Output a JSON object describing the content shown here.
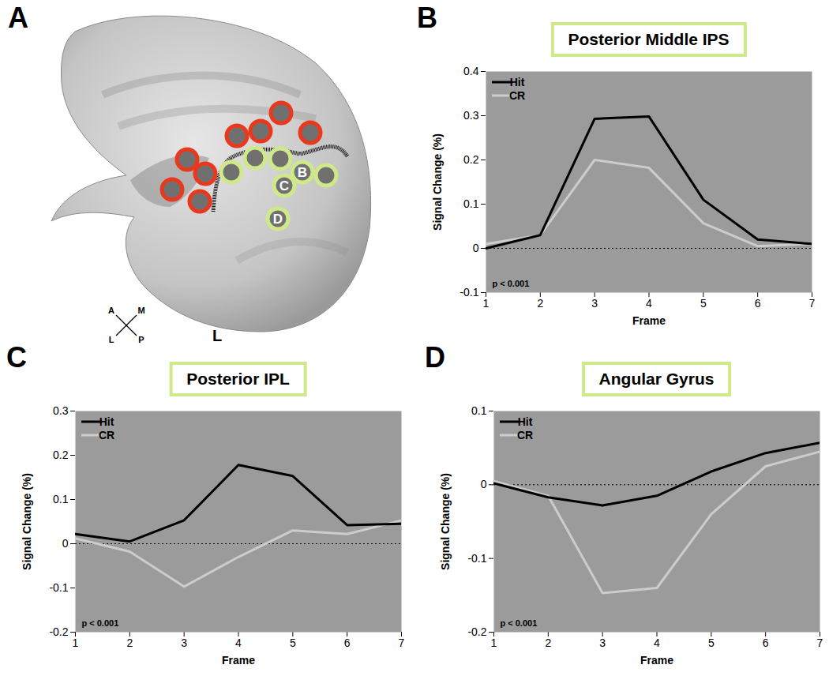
{
  "chart_data": [
    {
      "type": "line",
      "panel_label": "B",
      "title": "Posterior Middle IPS",
      "x_label": "Frame",
      "y_label": "Signal Change (%)",
      "x": [
        1,
        2,
        3,
        4,
        5,
        6,
        7
      ],
      "series": [
        {
          "name": "Hit",
          "color": "#000000",
          "values": [
            0.0,
            0.03,
            0.293,
            0.298,
            0.11,
            0.02,
            0.01
          ]
        },
        {
          "name": "CR",
          "color": "#cccccc",
          "values": [
            0.01,
            0.03,
            0.2,
            0.182,
            0.057,
            0.005,
            0.01
          ]
        }
      ],
      "xlim": [
        1,
        7
      ],
      "xticks": [
        1,
        2,
        3,
        4,
        5,
        6,
        7
      ],
      "ylim": [
        -0.1,
        0.4
      ],
      "yticks": [
        -0.1,
        0,
        0.1,
        0.2,
        0.3,
        0.4
      ],
      "hline": 0,
      "annotation": "p < 0.001",
      "legend": "upper left"
    },
    {
      "type": "line",
      "panel_label": "C",
      "title": "Posterior IPL",
      "x_label": "Frame",
      "y_label": "Signal Change (%)",
      "x": [
        1,
        2,
        3,
        4,
        5,
        6,
        7
      ],
      "series": [
        {
          "name": "Hit",
          "color": "#000000",
          "values": [
            0.022,
            0.005,
            0.053,
            0.178,
            0.153,
            0.042,
            0.045
          ]
        },
        {
          "name": "CR",
          "color": "#cccccc",
          "values": [
            0.012,
            -0.018,
            -0.097,
            -0.03,
            0.03,
            0.022,
            0.053
          ]
        }
      ],
      "xlim": [
        1,
        7
      ],
      "xticks": [
        1,
        2,
        3,
        4,
        5,
        6,
        7
      ],
      "ylim": [
        -0.2,
        0.3
      ],
      "yticks": [
        -0.2,
        -0.1,
        0,
        0.1,
        0.2,
        0.3
      ],
      "hline": 0,
      "annotation": "p < 0.001",
      "legend": "upper left"
    },
    {
      "type": "line",
      "panel_label": "D",
      "title": "Angular Gyrus",
      "x_label": "Frame",
      "y_label": "Signal Change (%)",
      "x": [
        1,
        2,
        3,
        4,
        5,
        6,
        7
      ],
      "series": [
        {
          "name": "Hit",
          "color": "#000000",
          "values": [
            0.002,
            -0.017,
            -0.028,
            -0.015,
            0.018,
            0.043,
            0.057
          ]
        },
        {
          "name": "CR",
          "color": "#cccccc",
          "values": [
            0.005,
            -0.015,
            -0.147,
            -0.14,
            -0.04,
            0.025,
            0.045
          ]
        }
      ],
      "xlim": [
        1,
        7
      ],
      "xticks": [
        1,
        2,
        3,
        4,
        5,
        6,
        7
      ],
      "ylim": [
        -0.2,
        0.1
      ],
      "yticks": [
        -0.2,
        -0.1,
        0,
        0.1
      ],
      "hline": 0,
      "annotation": "p < 0.001",
      "legend": "upper left"
    }
  ],
  "brain_panel": {
    "panel_label": "A",
    "hemisphere_label": "L",
    "compass": [
      "A",
      "M",
      "L",
      "P"
    ],
    "roi_labels": [
      "B",
      "C",
      "D"
    ]
  }
}
